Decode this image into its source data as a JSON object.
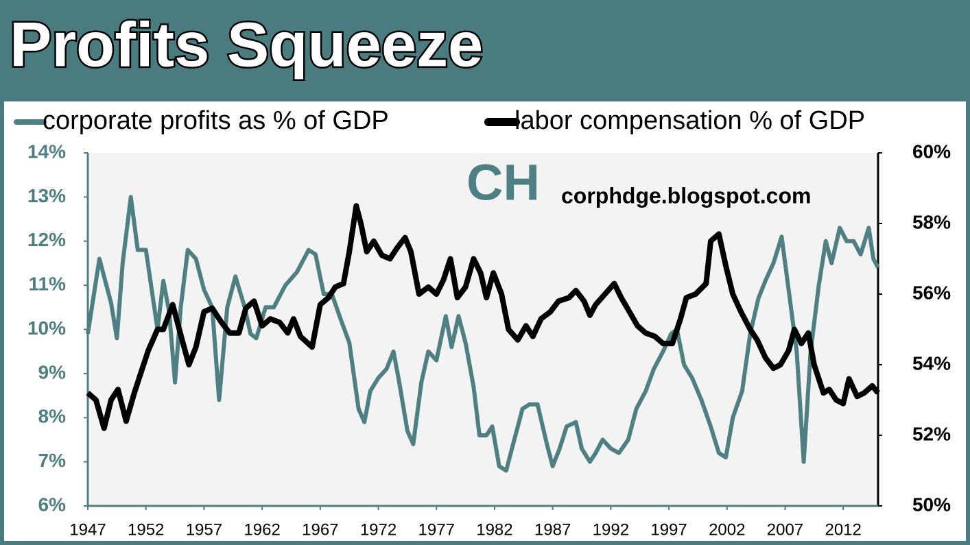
{
  "chart_data": {
    "type": "line",
    "title": "Profits Squeeze",
    "annotations": [
      "CH",
      "corphdge.blogspot.com"
    ],
    "xlim": [
      1947,
      2015
    ],
    "xticks": [
      1947,
      1952,
      1957,
      1962,
      1967,
      1972,
      1977,
      1982,
      1987,
      1992,
      1997,
      2002,
      2007,
      2012
    ],
    "ylim": [
      6,
      14
    ],
    "yticks": [
      {
        "value": 6,
        "label": "6%"
      },
      {
        "value": 7,
        "label": "7%"
      },
      {
        "value": 8,
        "label": "8%"
      },
      {
        "value": 9,
        "label": "9%"
      },
      {
        "value": 10,
        "label": "10%"
      },
      {
        "value": 11,
        "label": "11%"
      },
      {
        "value": 12,
        "label": "12%"
      },
      {
        "value": 13,
        "label": "13%"
      },
      {
        "value": 14,
        "label": "14%"
      }
    ],
    "y2lim": [
      50,
      60
    ],
    "y2ticks": [
      {
        "value": 50,
        "label": "50%"
      },
      {
        "value": 52,
        "label": "52%"
      },
      {
        "value": 54,
        "label": "54%"
      },
      {
        "value": 56,
        "label": "56%"
      },
      {
        "value": 58,
        "label": "58%"
      },
      {
        "value": 60,
        "label": "60%"
      }
    ],
    "series": [
      {
        "name": "corporate profits as % of GDP",
        "color": "#4e7f82",
        "axis": "y",
        "x": [
          1947,
          1948,
          1949,
          1949.5,
          1950,
          1950.7,
          1951.3,
          1952,
          1953,
          1953.5,
          1954,
          1954.5,
          1955,
          1955.6,
          1956.3,
          1957,
          1957.7,
          1958.3,
          1959,
          1959.7,
          1960.5,
          1961,
          1961.5,
          1962.3,
          1963,
          1964,
          1965,
          1966,
          1966.6,
          1967.3,
          1968,
          1968.8,
          1969.5,
          1970.3,
          1970.8,
          1971.3,
          1972,
          1972.7,
          1973.3,
          1973.8,
          1974.5,
          1975,
          1975.7,
          1976.3,
          1977,
          1977.8,
          1978.3,
          1978.9,
          1979.5,
          1980.2,
          1980.7,
          1981.3,
          1981.8,
          1982.4,
          1983,
          1983.7,
          1984.4,
          1985,
          1985.7,
          1986.5,
          1987,
          1987.6,
          1988.2,
          1989,
          1989.5,
          1990.2,
          1990.7,
          1991.3,
          1992,
          1992.7,
          1993.5,
          1994.2,
          1995,
          1995.7,
          1996.5,
          1997.2,
          1997.7,
          1998.3,
          1999,
          1999.8,
          2000.6,
          2001.3,
          2001.9,
          2002.5,
          2003.3,
          2004,
          2004.7,
          2005.3,
          2006,
          2006.7,
          2007.3,
          2008,
          2008.6,
          2009.2,
          2009.9,
          2010.5,
          2011,
          2011.7,
          2012.3,
          2012.9,
          2013.5,
          2014.2,
          2014.6,
          2015
        ],
        "values": [
          9.9,
          11.6,
          10.6,
          9.8,
          11.5,
          13.0,
          11.8,
          11.8,
          10.0,
          11.1,
          10.4,
          8.8,
          10.5,
          11.8,
          11.6,
          10.9,
          10.5,
          8.4,
          10.5,
          11.2,
          10.5,
          9.9,
          9.8,
          10.5,
          10.5,
          11.0,
          11.3,
          11.8,
          11.7,
          10.8,
          10.8,
          10.2,
          9.7,
          8.2,
          7.9,
          8.6,
          8.9,
          9.1,
          9.5,
          8.8,
          7.7,
          7.4,
          8.8,
          9.5,
          9.3,
          10.3,
          9.6,
          10.3,
          9.7,
          8.7,
          7.6,
          7.6,
          7.8,
          6.9,
          6.8,
          7.5,
          8.2,
          8.3,
          8.3,
          7.4,
          6.9,
          7.3,
          7.8,
          7.9,
          7.3,
          7.0,
          7.2,
          7.5,
          7.3,
          7.2,
          7.5,
          8.2,
          8.6,
          9.1,
          9.5,
          9.9,
          10.0,
          9.2,
          8.9,
          8.4,
          7.8,
          7.2,
          7.1,
          8.0,
          8.6,
          9.9,
          10.7,
          11.1,
          11.5,
          12.1,
          10.9,
          9.5,
          7.0,
          9.5,
          11.0,
          12.0,
          11.5,
          12.3,
          12.0,
          12.0,
          11.7,
          12.3,
          11.6,
          11.4
        ]
      },
      {
        "name": "labor compensation % of GDP",
        "color": "#000000",
        "axis": "y2",
        "x": [
          1947,
          1947.7,
          1948.4,
          1949,
          1949.6,
          1950.3,
          1951,
          1951.5,
          1952.2,
          1953,
          1953.5,
          1954.3,
          1955.2,
          1955.7,
          1956.3,
          1957,
          1957.7,
          1958.5,
          1959.2,
          1960,
          1960.6,
          1961.3,
          1962,
          1962.7,
          1963.5,
          1964.2,
          1964.7,
          1965.3,
          1966.3,
          1967,
          1967.7,
          1968.3,
          1969,
          1969.5,
          1970.1,
          1970.5,
          1971,
          1971.6,
          1972.3,
          1973,
          1973.6,
          1974.3,
          1974.8,
          1975.5,
          1976.3,
          1977,
          1977.6,
          1978.2,
          1978.8,
          1979.5,
          1980.2,
          1980.8,
          1981.3,
          1981.9,
          1982.6,
          1983.2,
          1984,
          1984.7,
          1985.3,
          1986,
          1986.8,
          1987.5,
          1988.4,
          1989,
          1989.7,
          1990.2,
          1990.7,
          1991.5,
          1992.3,
          1992.9,
          1993.6,
          1994.3,
          1995,
          1995.8,
          1996.5,
          1997.3,
          1998,
          1998.5,
          1999.3,
          2000.2,
          2000.6,
          2001.3,
          2001.9,
          2002.5,
          2003.2,
          2004,
          2004.6,
          2005.3,
          2006,
          2006.6,
          2007.3,
          2007.8,
          2008.4,
          2009,
          2009.5,
          2010.3,
          2010.8,
          2011.4,
          2012,
          2012.5,
          2013.2,
          2013.8,
          2014.5,
          2015
        ],
        "values": [
          53.2,
          53.0,
          52.2,
          53.0,
          53.3,
          52.4,
          53.2,
          53.7,
          54.4,
          55.0,
          55.0,
          55.7,
          54.6,
          54.0,
          54.5,
          55.5,
          55.6,
          55.2,
          54.9,
          54.9,
          55.6,
          55.8,
          55.1,
          55.3,
          55.2,
          54.9,
          55.3,
          54.8,
          54.5,
          55.7,
          55.9,
          56.2,
          56.3,
          57.2,
          58.5,
          58.0,
          57.2,
          57.5,
          57.1,
          57.0,
          57.3,
          57.6,
          57.2,
          56.0,
          56.2,
          56.0,
          56.4,
          57.0,
          55.9,
          56.2,
          57.0,
          56.6,
          55.9,
          56.6,
          56.0,
          55.0,
          54.7,
          55.1,
          54.8,
          55.3,
          55.5,
          55.8,
          55.9,
          56.1,
          55.8,
          55.4,
          55.7,
          56.0,
          56.3,
          55.9,
          55.5,
          55.1,
          54.9,
          54.8,
          54.6,
          54.6,
          55.3,
          55.9,
          56.0,
          56.3,
          57.5,
          57.7,
          56.8,
          56.0,
          55.5,
          55.0,
          54.7,
          54.2,
          53.9,
          54.0,
          54.4,
          55.0,
          54.6,
          54.9,
          54.0,
          53.2,
          53.3,
          53.0,
          52.9,
          53.6,
          53.1,
          53.2,
          53.4,
          53.2
        ]
      }
    ]
  }
}
